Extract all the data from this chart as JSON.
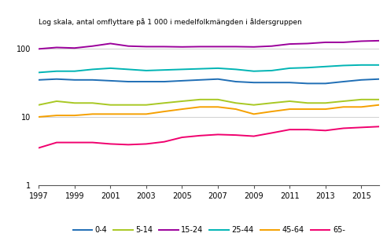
{
  "title": "Log skala, antal omflyttare på 1 000 i medelfolkmängden i åldersgruppen",
  "years": [
    1997,
    1998,
    1999,
    2000,
    2001,
    2002,
    2003,
    2004,
    2005,
    2006,
    2007,
    2008,
    2009,
    2010,
    2011,
    2012,
    2013,
    2014,
    2015,
    2016
  ],
  "series": {
    "0-4": [
      35,
      36,
      35,
      35,
      34,
      33,
      33,
      33,
      34,
      35,
      36,
      33,
      32,
      32,
      32,
      31,
      31,
      33,
      35,
      36
    ],
    "5-14": [
      15,
      17,
      16,
      16,
      15,
      15,
      15,
      16,
      17,
      18,
      18,
      16,
      15,
      16,
      17,
      16,
      16,
      17,
      18,
      18
    ],
    "15-24": [
      100,
      105,
      103,
      110,
      120,
      110,
      108,
      108,
      107,
      108,
      108,
      108,
      107,
      110,
      118,
      120,
      125,
      125,
      130,
      132
    ],
    "25-44": [
      45,
      47,
      47,
      50,
      52,
      50,
      48,
      49,
      50,
      51,
      52,
      50,
      47,
      48,
      52,
      53,
      55,
      57,
      58,
      58
    ],
    "45-64": [
      10,
      10.5,
      10.5,
      11,
      11,
      11,
      11,
      12,
      13,
      14,
      14,
      13,
      11,
      12,
      13,
      13,
      13,
      14,
      14,
      15
    ],
    "65-": [
      3.5,
      4.2,
      4.2,
      4.2,
      4.0,
      3.9,
      4.0,
      4.3,
      5.0,
      5.3,
      5.5,
      5.4,
      5.2,
      5.8,
      6.5,
      6.5,
      6.3,
      6.8,
      7.0,
      7.2
    ]
  },
  "colors": {
    "0-4": "#1f6eb5",
    "5-14": "#a8c823",
    "15-24": "#9b009b",
    "25-44": "#00b4b4",
    "45-64": "#f5a000",
    "65-": "#f0006e"
  },
  "ylim": [
    1,
    200
  ],
  "yticks": [
    1,
    10,
    100
  ],
  "xticks": [
    1997,
    1999,
    2001,
    2003,
    2005,
    2007,
    2009,
    2011,
    2013,
    2015
  ],
  "background_color": "#ffffff",
  "line_width": 1.4,
  "title_fontsize": 6.5,
  "tick_fontsize": 7
}
